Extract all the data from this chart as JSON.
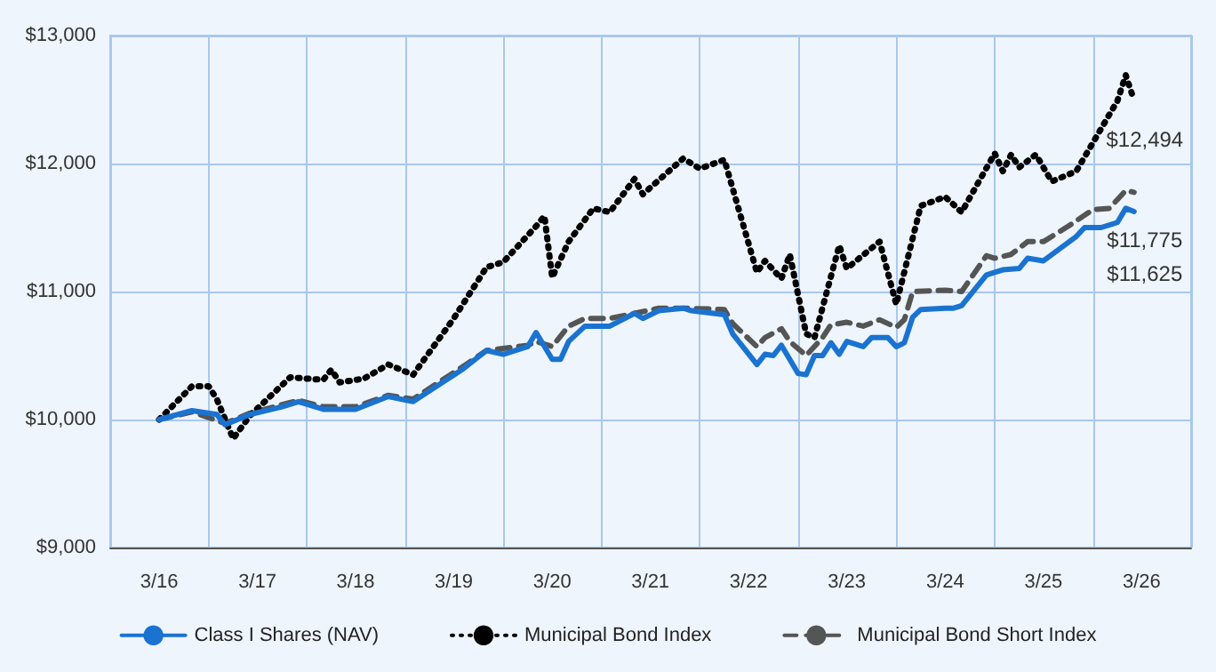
{
  "chart_data": {
    "type": "line",
    "marker": "none",
    "grid": true,
    "legend": "bottom",
    "xlim": [
      "2015-09",
      "2026-09"
    ],
    "xticks": [
      {
        "value": "2015-09",
        "label": null
      },
      {
        "value": "2016-03",
        "label": "3/16"
      },
      {
        "value": "2016-09",
        "label": null
      },
      {
        "value": "2017-03",
        "label": "3/17"
      },
      {
        "value": "2017-09",
        "label": null
      },
      {
        "value": "2018-03",
        "label": "3/18"
      },
      {
        "value": "2018-09",
        "label": null
      },
      {
        "value": "2019-03",
        "label": "3/19"
      },
      {
        "value": "2019-09",
        "label": null
      },
      {
        "value": "2020-03",
        "label": "3/20"
      },
      {
        "value": "2020-09",
        "label": null
      },
      {
        "value": "2021-03",
        "label": "3/21"
      },
      {
        "value": "2021-09",
        "label": null
      },
      {
        "value": "2022-03",
        "label": "3/22"
      },
      {
        "value": "2022-09",
        "label": null
      },
      {
        "value": "2023-03",
        "label": "3/23"
      },
      {
        "value": "2023-09",
        "label": null
      },
      {
        "value": "2024-03",
        "label": "3/24"
      },
      {
        "value": "2024-09",
        "label": null
      },
      {
        "value": "2025-03",
        "label": "3/25"
      },
      {
        "value": "2025-09",
        "label": null
      },
      {
        "value": "2026-03",
        "label": "3/26"
      },
      {
        "value": "2026-09",
        "label": null
      }
    ],
    "ylim": [
      9000,
      13000
    ],
    "yticks": [
      {
        "value": 9000,
        "label": "$9,000"
      },
      {
        "value": 10000,
        "label": "$10,000"
      },
      {
        "value": 11000,
        "label": "$11,000"
      },
      {
        "value": 12000,
        "label": "$12,000"
      },
      {
        "value": 13000,
        "label": "$13,000"
      }
    ],
    "annotations": [
      {
        "text": "$12,494",
        "x": "2026-02",
        "y": 12494
      },
      {
        "text": "$11,775",
        "x": "2026-02",
        "y": 11775
      },
      {
        "text": "$11,625",
        "x": "2026-02",
        "y": 11625
      }
    ],
    "series": [
      {
        "name": "Class I Shares (NAV)",
        "color": "#1a73d0",
        "line_style": "solid",
        "x": [
          "2016-03",
          "2016-07",
          "2016-10",
          "2016-11",
          "2017-02",
          "2017-06",
          "2017-08",
          "2017-11",
          "2018-03",
          "2018-07",
          "2018-10",
          "2019-04",
          "2019-07",
          "2019-09",
          "2019-12",
          "2020-01",
          "2020-03",
          "2020-04",
          "2020-05",
          "2020-07",
          "2020-10",
          "2021-01",
          "2021-02",
          "2021-04",
          "2021-07",
          "2021-08",
          "2021-12",
          "2022-01",
          "2022-04",
          "2022-05",
          "2022-06",
          "2022-07",
          "2022-08",
          "2022-09",
          "2022-10",
          "2022-11",
          "2022-12",
          "2023-01",
          "2023-02",
          "2023-03",
          "2023-05",
          "2023-06",
          "2023-08",
          "2023-09",
          "2023-10",
          "2023-11",
          "2023-12",
          "2024-03",
          "2024-04",
          "2024-05",
          "2024-08",
          "2024-09",
          "2024-10",
          "2024-12",
          "2025-01",
          "2025-03",
          "2025-07",
          "2025-08",
          "2025-10",
          "2025-12",
          "2026-01",
          "2026-02"
        ],
        "values": [
          10000,
          10070,
          10040,
          9960,
          10040,
          10100,
          10140,
          10080,
          10080,
          10180,
          10140,
          10390,
          10540,
          10510,
          10570,
          10680,
          10470,
          10470,
          10610,
          10730,
          10730,
          10830,
          10790,
          10850,
          10870,
          10850,
          10820,
          10670,
          10430,
          10510,
          10500,
          10580,
          10470,
          10360,
          10350,
          10500,
          10500,
          10600,
          10510,
          10610,
          10570,
          10640,
          10640,
          10570,
          10600,
          10800,
          10860,
          10870,
          10870,
          10890,
          11130,
          11150,
          11170,
          11180,
          11260,
          11240,
          11430,
          11500,
          11500,
          11540,
          11650,
          11625
        ]
      },
      {
        "name": "Municipal Bond Index",
        "color": "#000000",
        "line_style": "dotted",
        "x": [
          "2016-03",
          "2016-07",
          "2016-09",
          "2016-10",
          "2016-12",
          "2017-02",
          "2017-07",
          "2017-11",
          "2017-12",
          "2018-01",
          "2018-04",
          "2018-07",
          "2018-10",
          "2019-03",
          "2019-07",
          "2019-09",
          "2020-01",
          "2020-02",
          "2020-03",
          "2020-05",
          "2020-08",
          "2020-10",
          "2021-01",
          "2021-02",
          "2021-07",
          "2021-09",
          "2021-12",
          "2022-04",
          "2022-05",
          "2022-07",
          "2022-08",
          "2022-10",
          "2022-11",
          "2023-02",
          "2023-03",
          "2023-07",
          "2023-09",
          "2023-12",
          "2024-03",
          "2024-05",
          "2024-09",
          "2024-10",
          "2024-11",
          "2024-12",
          "2025-02",
          "2025-04",
          "2025-07",
          "2025-12",
          "2026-01",
          "2026-02"
        ],
        "values": [
          10000,
          10260,
          10260,
          10160,
          9850,
          10030,
          10330,
          10310,
          10390,
          10290,
          10320,
          10430,
          10350,
          10790,
          11190,
          11230,
          11510,
          11590,
          11110,
          11390,
          11650,
          11620,
          11880,
          11760,
          12040,
          11960,
          12030,
          11150,
          11240,
          11100,
          11290,
          10670,
          10640,
          11360,
          11180,
          11390,
          10900,
          11670,
          11740,
          11620,
          12080,
          11940,
          12070,
          11970,
          12070,
          11860,
          11940,
          12490,
          12690,
          12494
        ]
      },
      {
        "name": "Municipal Bond Short Index",
        "color": "#555555",
        "line_style": "dashed",
        "x": [
          "2016-03",
          "2016-07",
          "2016-11",
          "2017-02",
          "2017-08",
          "2017-11",
          "2018-03",
          "2018-07",
          "2018-10",
          "2019-04",
          "2019-07",
          "2019-12",
          "2020-01",
          "2020-03",
          "2020-05",
          "2020-07",
          "2020-10",
          "2021-01",
          "2021-04",
          "2021-07",
          "2021-12",
          "2022-01",
          "2022-04",
          "2022-05",
          "2022-07",
          "2022-08",
          "2022-10",
          "2022-12",
          "2023-01",
          "2023-03",
          "2023-05",
          "2023-07",
          "2023-09",
          "2023-10",
          "2023-11",
          "2024-03",
          "2024-05",
          "2024-08",
          "2024-09",
          "2024-11",
          "2025-01",
          "2025-03",
          "2025-06",
          "2025-09",
          "2025-11",
          "2026-01",
          "2026-02"
        ],
        "values": [
          10000,
          10060,
          9970,
          10050,
          10150,
          10100,
          10100,
          10190,
          10160,
          10410,
          10540,
          10580,
          10610,
          10570,
          10730,
          10790,
          10790,
          10830,
          10870,
          10870,
          10860,
          10750,
          10570,
          10640,
          10710,
          10610,
          10500,
          10640,
          10740,
          10760,
          10730,
          10780,
          10720,
          10780,
          11000,
          11010,
          11000,
          11280,
          11260,
          11290,
          11390,
          11390,
          11510,
          11640,
          11650,
          11790,
          11775
        ]
      }
    ]
  }
}
